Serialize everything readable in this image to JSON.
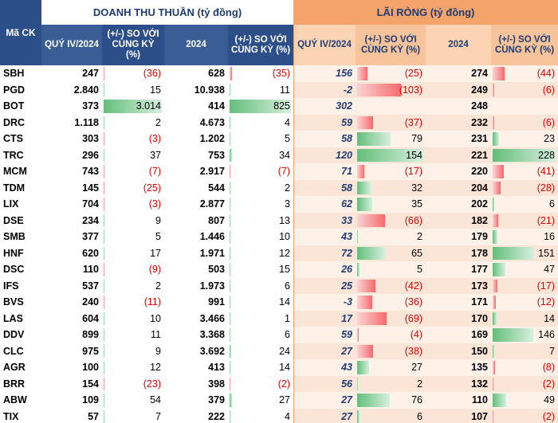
{
  "headers": {
    "ma_ck": "Mã CK",
    "doanh_thu_title": "DOANH THU THUẦN (tỷ đồng)",
    "lai_rong_title": "LÃI RÒNG (tỷ đồng)",
    "quy": "QUÝ IV/2024",
    "so_voi": "(+/-) SO VỚI CÙNG KỲ (%)",
    "nam": "2024"
  },
  "rows": [
    {
      "tk": "SBH",
      "dq": "247",
      "dqc": "(36)",
      "dn": "628",
      "dnc": "(35)",
      "lq": "156",
      "lqc": "(25)",
      "ln": "274",
      "lnc": "(44)"
    },
    {
      "tk": "PGD",
      "dq": "2.840",
      "dqc": "15",
      "dn": "10.938",
      "dnc": "11",
      "lq": "-2",
      "lqc": "(103)",
      "ln": "249",
      "lnc": "(6)"
    },
    {
      "tk": "BOT",
      "dq": "373",
      "dqc": "3.014",
      "dn": "414",
      "dnc": "825",
      "lq": "302",
      "lqc": "",
      "ln": "248",
      "lnc": ""
    },
    {
      "tk": "DRC",
      "dq": "1.118",
      "dqc": "2",
      "dn": "4.673",
      "dnc": "4",
      "lq": "59",
      "lqc": "(37)",
      "ln": "232",
      "lnc": "(6)"
    },
    {
      "tk": "CTS",
      "dq": "303",
      "dqc": "(3)",
      "dn": "1.202",
      "dnc": "5",
      "lq": "58",
      "lqc": "79",
      "ln": "231",
      "lnc": "23"
    },
    {
      "tk": "TRC",
      "dq": "296",
      "dqc": "37",
      "dn": "753",
      "dnc": "34",
      "lq": "120",
      "lqc": "154",
      "ln": "221",
      "lnc": "228"
    },
    {
      "tk": "MCM",
      "dq": "743",
      "dqc": "(7)",
      "dn": "2.917",
      "dnc": "(7)",
      "lq": "71",
      "lqc": "(17)",
      "ln": "220",
      "lnc": "(41)"
    },
    {
      "tk": "TDM",
      "dq": "145",
      "dqc": "(25)",
      "dn": "544",
      "dnc": "2",
      "lq": "58",
      "lqc": "32",
      "ln": "204",
      "lnc": "(28)"
    },
    {
      "tk": "LIX",
      "dq": "704",
      "dqc": "(3)",
      "dn": "2.877",
      "dnc": "3",
      "lq": "62",
      "lqc": "35",
      "ln": "202",
      "lnc": "6"
    },
    {
      "tk": "DSE",
      "dq": "234",
      "dqc": "9",
      "dn": "807",
      "dnc": "13",
      "lq": "33",
      "lqc": "(66)",
      "ln": "182",
      "lnc": "(21)"
    },
    {
      "tk": "SMB",
      "dq": "377",
      "dqc": "5",
      "dn": "1.446",
      "dnc": "10",
      "lq": "43",
      "lqc": "2",
      "ln": "179",
      "lnc": "16"
    },
    {
      "tk": "HNF",
      "dq": "620",
      "dqc": "17",
      "dn": "1.971",
      "dnc": "12",
      "lq": "72",
      "lqc": "65",
      "ln": "178",
      "lnc": "151"
    },
    {
      "tk": "DSC",
      "dq": "110",
      "dqc": "(9)",
      "dn": "503",
      "dnc": "15",
      "lq": "26",
      "lqc": "5",
      "ln": "177",
      "lnc": "47"
    },
    {
      "tk": "IFS",
      "dq": "537",
      "dqc": "2",
      "dn": "1.973",
      "dnc": "6",
      "lq": "25",
      "lqc": "(42)",
      "ln": "173",
      "lnc": "(17)"
    },
    {
      "tk": "BVS",
      "dq": "240",
      "dqc": "(11)",
      "dn": "991",
      "dnc": "14",
      "lq": "-3",
      "lqc": "(36)",
      "ln": "171",
      "lnc": "(12)"
    },
    {
      "tk": "LAS",
      "dq": "604",
      "dqc": "10",
      "dn": "3.466",
      "dnc": "1",
      "lq": "17",
      "lqc": "(69)",
      "ln": "170",
      "lnc": "14"
    },
    {
      "tk": "DDV",
      "dq": "899",
      "dqc": "11",
      "dn": "3.368",
      "dnc": "6",
      "lq": "59",
      "lqc": "(4)",
      "ln": "169",
      "lnc": "146"
    },
    {
      "tk": "CLC",
      "dq": "975",
      "dqc": "9",
      "dn": "3.692",
      "dnc": "24",
      "lq": "27",
      "lqc": "(38)",
      "ln": "150",
      "lnc": "7"
    },
    {
      "tk": "AGR",
      "dq": "100",
      "dqc": "12",
      "dn": "413",
      "dnc": "14",
      "lq": "43",
      "lqc": "27",
      "ln": "135",
      "lnc": "(8)"
    },
    {
      "tk": "BRR",
      "dq": "154",
      "dqc": "(23)",
      "dn": "398",
      "dnc": "(2)",
      "lq": "56",
      "lqc": "2",
      "ln": "132",
      "lnc": "(2)"
    },
    {
      "tk": "ABW",
      "dq": "109",
      "dqc": "54",
      "dn": "379",
      "dnc": "27",
      "lq": "27",
      "lqc": "76",
      "ln": "110",
      "lnc": "49"
    },
    {
      "tk": "TIX",
      "dq": "57",
      "dqc": "7",
      "dn": "222",
      "dnc": "4",
      "lq": "27",
      "lqc": "6",
      "ln": "107",
      "lnc": "(2)"
    }
  ],
  "colors": {
    "header_blue": "#2c4f8a",
    "header_orange": "#f4a46a",
    "negative": "#e00000",
    "bar_positive": "#63be7b",
    "bar_negative": "#f8696b"
  }
}
